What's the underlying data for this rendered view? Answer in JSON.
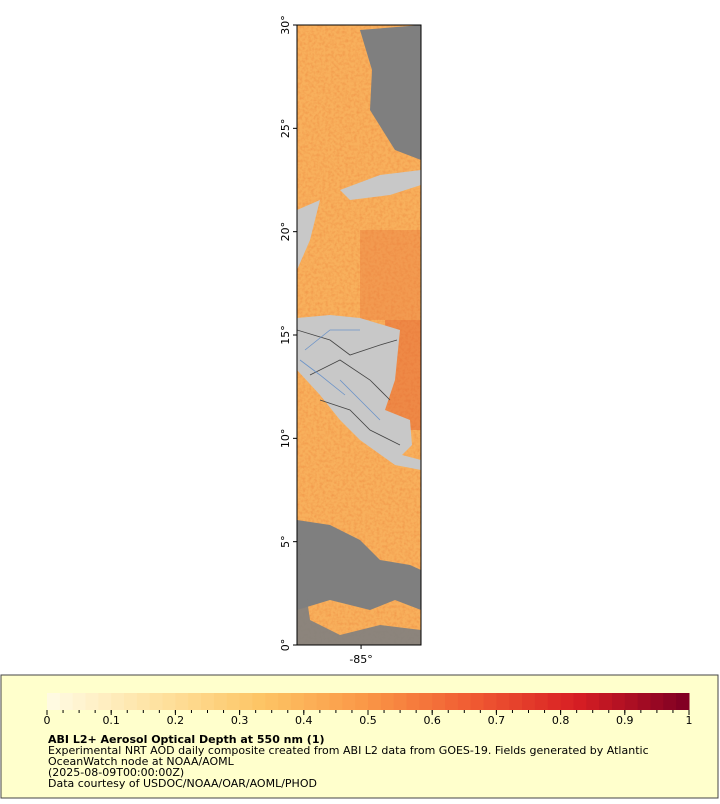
{
  "map": {
    "ylim": [
      0,
      30
    ],
    "yticks": [
      {
        "value": 0,
        "label": "0°"
      },
      {
        "value": 5,
        "label": "5°"
      },
      {
        "value": 10,
        "label": "10°"
      },
      {
        "value": 15,
        "label": "15°"
      },
      {
        "value": 20,
        "label": "20°"
      },
      {
        "value": 25,
        "label": "25°"
      },
      {
        "value": 30,
        "label": "30°"
      }
    ],
    "xlim": [
      -88.1,
      -82.1
    ],
    "xticks": [
      {
        "value": -85,
        "label": "-85°"
      }
    ]
  },
  "colorbar": {
    "lim": [
      0,
      1
    ],
    "ticks": [
      0,
      0.1,
      0.2,
      0.3,
      0.4,
      0.5,
      0.6,
      0.7,
      0.8,
      0.9,
      1
    ]
  },
  "legend": {
    "title": "ABI L2+ Aerosol Optical Depth at 550 nm (1)",
    "lines": [
      "Experimental NRT AOD daily composite created from ABI L2 data from GOES-19. Fields generated by Atlantic",
      "OceanWatch node at NOAA/AOML",
      "(2025-08-09T00:00:00Z)",
      "Data courtesy of USDOC/NOAA/OAR/AOML/PHOD"
    ]
  }
}
